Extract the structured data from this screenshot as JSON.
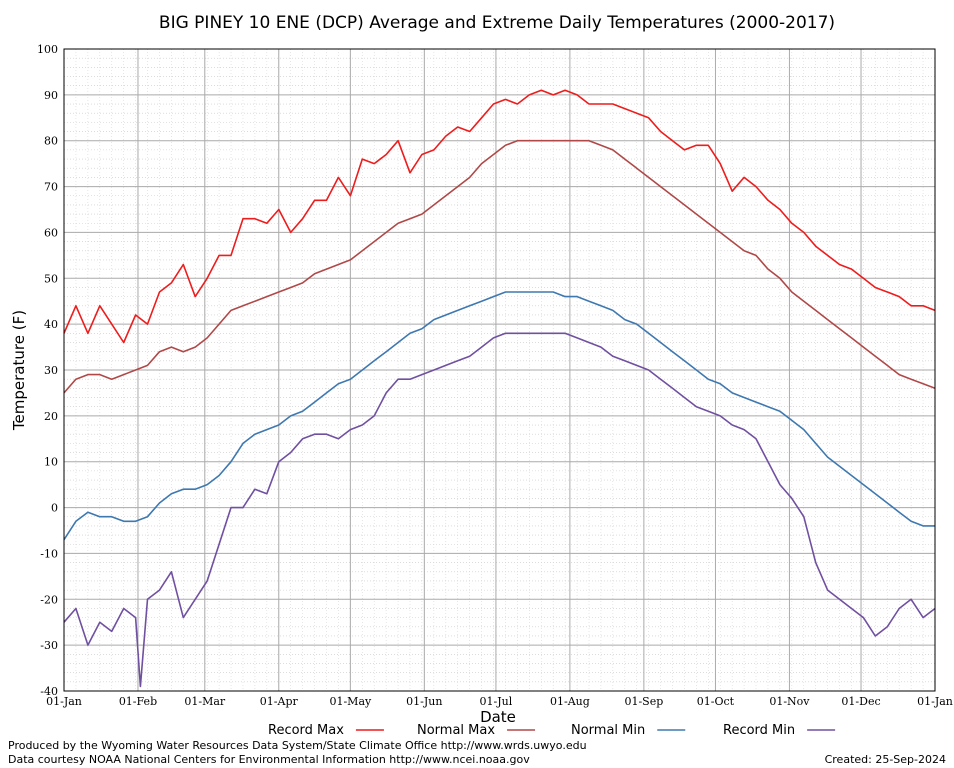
{
  "chart_data": {
    "type": "line",
    "title": "BIG PINEY 10 ENE (DCP) Average and Extreme Daily Temperatures (2000-2017)",
    "xlabel": "Date",
    "ylabel": "Temperature (F)",
    "ylim": [
      -40,
      100
    ],
    "grid": true,
    "legend_position": "bottom",
    "y_ticks": [
      "-40",
      "-30",
      "-20",
      "-10",
      "0",
      "10",
      "20",
      "30",
      "40",
      "50",
      "60",
      "70",
      "80",
      "90",
      "100"
    ],
    "x_ticks": [
      "01-Jan",
      "01-Feb",
      "01-Mar",
      "01-Apr",
      "01-May",
      "01-Jun",
      "01-Jul",
      "01-Aug",
      "01-Sep",
      "01-Oct",
      "01-Nov",
      "01-Dec",
      "01-Jan"
    ],
    "x_tick_days": [
      0,
      31,
      59,
      90,
      120,
      151,
      181,
      212,
      243,
      273,
      304,
      334,
      365
    ],
    "series": [
      {
        "name": "Record Max",
        "color": "#ee1c1c",
        "points": [
          [
            0,
            38
          ],
          [
            5,
            44
          ],
          [
            10,
            38
          ],
          [
            15,
            44
          ],
          [
            20,
            40
          ],
          [
            25,
            36
          ],
          [
            30,
            42
          ],
          [
            35,
            40
          ],
          [
            40,
            47
          ],
          [
            45,
            49
          ],
          [
            50,
            53
          ],
          [
            55,
            46
          ],
          [
            60,
            50
          ],
          [
            65,
            55
          ],
          [
            70,
            55
          ],
          [
            75,
            63
          ],
          [
            80,
            63
          ],
          [
            85,
            62
          ],
          [
            90,
            65
          ],
          [
            95,
            60
          ],
          [
            100,
            63
          ],
          [
            105,
            67
          ],
          [
            110,
            67
          ],
          [
            115,
            72
          ],
          [
            120,
            68
          ],
          [
            125,
            76
          ],
          [
            130,
            75
          ],
          [
            135,
            77
          ],
          [
            140,
            80
          ],
          [
            145,
            73
          ],
          [
            150,
            77
          ],
          [
            155,
            78
          ],
          [
            160,
            81
          ],
          [
            165,
            83
          ],
          [
            170,
            82
          ],
          [
            175,
            85
          ],
          [
            180,
            88
          ],
          [
            185,
            89
          ],
          [
            190,
            88
          ],
          [
            195,
            90
          ],
          [
            200,
            91
          ],
          [
            205,
            90
          ],
          [
            210,
            91
          ],
          [
            215,
            90
          ],
          [
            220,
            88
          ],
          [
            225,
            88
          ],
          [
            230,
            88
          ],
          [
            235,
            87
          ],
          [
            240,
            86
          ],
          [
            245,
            85
          ],
          [
            250,
            82
          ],
          [
            255,
            80
          ],
          [
            260,
            78
          ],
          [
            265,
            79
          ],
          [
            270,
            79
          ],
          [
            275,
            75
          ],
          [
            280,
            69
          ],
          [
            285,
            72
          ],
          [
            290,
            70
          ],
          [
            295,
            67
          ],
          [
            300,
            65
          ],
          [
            305,
            62
          ],
          [
            310,
            60
          ],
          [
            315,
            57
          ],
          [
            320,
            55
          ],
          [
            325,
            53
          ],
          [
            330,
            52
          ],
          [
            335,
            50
          ],
          [
            340,
            48
          ],
          [
            345,
            47
          ],
          [
            350,
            46
          ],
          [
            355,
            44
          ],
          [
            360,
            44
          ],
          [
            365,
            43
          ]
        ]
      },
      {
        "name": "Normal Max",
        "color": "#b04848",
        "points": [
          [
            0,
            25
          ],
          [
            5,
            28
          ],
          [
            10,
            29
          ],
          [
            15,
            29
          ],
          [
            20,
            28
          ],
          [
            25,
            29
          ],
          [
            30,
            30
          ],
          [
            35,
            31
          ],
          [
            40,
            34
          ],
          [
            45,
            35
          ],
          [
            50,
            34
          ],
          [
            55,
            35
          ],
          [
            60,
            37
          ],
          [
            65,
            40
          ],
          [
            70,
            43
          ],
          [
            75,
            44
          ],
          [
            80,
            45
          ],
          [
            85,
            46
          ],
          [
            90,
            47
          ],
          [
            95,
            48
          ],
          [
            100,
            49
          ],
          [
            105,
            51
          ],
          [
            110,
            52
          ],
          [
            115,
            53
          ],
          [
            120,
            54
          ],
          [
            125,
            56
          ],
          [
            130,
            58
          ],
          [
            135,
            60
          ],
          [
            140,
            62
          ],
          [
            145,
            63
          ],
          [
            150,
            64
          ],
          [
            155,
            66
          ],
          [
            160,
            68
          ],
          [
            165,
            70
          ],
          [
            170,
            72
          ],
          [
            175,
            75
          ],
          [
            180,
            77
          ],
          [
            185,
            79
          ],
          [
            190,
            80
          ],
          [
            195,
            80
          ],
          [
            200,
            80
          ],
          [
            205,
            80
          ],
          [
            210,
            80
          ],
          [
            215,
            80
          ],
          [
            220,
            80
          ],
          [
            225,
            79
          ],
          [
            230,
            78
          ],
          [
            235,
            76
          ],
          [
            240,
            74
          ],
          [
            245,
            72
          ],
          [
            250,
            70
          ],
          [
            255,
            68
          ],
          [
            260,
            66
          ],
          [
            265,
            64
          ],
          [
            270,
            62
          ],
          [
            275,
            60
          ],
          [
            280,
            58
          ],
          [
            285,
            56
          ],
          [
            290,
            55
          ],
          [
            295,
            52
          ],
          [
            300,
            50
          ],
          [
            305,
            47
          ],
          [
            310,
            45
          ],
          [
            315,
            43
          ],
          [
            320,
            41
          ],
          [
            325,
            39
          ],
          [
            330,
            37
          ],
          [
            335,
            35
          ],
          [
            340,
            33
          ],
          [
            345,
            31
          ],
          [
            350,
            29
          ],
          [
            355,
            28
          ],
          [
            360,
            27
          ],
          [
            365,
            26
          ]
        ]
      },
      {
        "name": "Normal Min",
        "color": "#3e78b0",
        "points": [
          [
            0,
            -7
          ],
          [
            5,
            -3
          ],
          [
            10,
            -1
          ],
          [
            15,
            -2
          ],
          [
            20,
            -2
          ],
          [
            25,
            -3
          ],
          [
            30,
            -3
          ],
          [
            35,
            -2
          ],
          [
            40,
            1
          ],
          [
            45,
            3
          ],
          [
            50,
            4
          ],
          [
            55,
            4
          ],
          [
            60,
            5
          ],
          [
            65,
            7
          ],
          [
            70,
            10
          ],
          [
            75,
            14
          ],
          [
            80,
            16
          ],
          [
            85,
            17
          ],
          [
            90,
            18
          ],
          [
            95,
            20
          ],
          [
            100,
            21
          ],
          [
            105,
            23
          ],
          [
            110,
            25
          ],
          [
            115,
            27
          ],
          [
            120,
            28
          ],
          [
            125,
            30
          ],
          [
            130,
            32
          ],
          [
            135,
            34
          ],
          [
            140,
            36
          ],
          [
            145,
            38
          ],
          [
            150,
            39
          ],
          [
            155,
            41
          ],
          [
            160,
            42
          ],
          [
            165,
            43
          ],
          [
            170,
            44
          ],
          [
            175,
            45
          ],
          [
            180,
            46
          ],
          [
            185,
            47
          ],
          [
            190,
            47
          ],
          [
            195,
            47
          ],
          [
            200,
            47
          ],
          [
            205,
            47
          ],
          [
            210,
            46
          ],
          [
            215,
            46
          ],
          [
            220,
            45
          ],
          [
            225,
            44
          ],
          [
            230,
            43
          ],
          [
            235,
            41
          ],
          [
            240,
            40
          ],
          [
            245,
            38
          ],
          [
            250,
            36
          ],
          [
            255,
            34
          ],
          [
            260,
            32
          ],
          [
            265,
            30
          ],
          [
            270,
            28
          ],
          [
            275,
            27
          ],
          [
            280,
            25
          ],
          [
            285,
            24
          ],
          [
            290,
            23
          ],
          [
            295,
            22
          ],
          [
            300,
            21
          ],
          [
            305,
            19
          ],
          [
            310,
            17
          ],
          [
            315,
            14
          ],
          [
            320,
            11
          ],
          [
            325,
            9
          ],
          [
            330,
            7
          ],
          [
            335,
            5
          ],
          [
            340,
            3
          ],
          [
            345,
            1
          ],
          [
            350,
            -1
          ],
          [
            355,
            -3
          ],
          [
            360,
            -4
          ],
          [
            365,
            -4
          ]
        ]
      },
      {
        "name": "Record Min",
        "color": "#7050a0",
        "points": [
          [
            0,
            -25
          ],
          [
            5,
            -22
          ],
          [
            10,
            -30
          ],
          [
            15,
            -25
          ],
          [
            20,
            -27
          ],
          [
            25,
            -22
          ],
          [
            30,
            -24
          ],
          [
            32,
            -39
          ],
          [
            35,
            -20
          ],
          [
            40,
            -18
          ],
          [
            45,
            -14
          ],
          [
            50,
            -24
          ],
          [
            55,
            -20
          ],
          [
            60,
            -16
          ],
          [
            65,
            -8
          ],
          [
            70,
            0
          ],
          [
            75,
            0
          ],
          [
            80,
            4
          ],
          [
            85,
            3
          ],
          [
            90,
            10
          ],
          [
            95,
            12
          ],
          [
            100,
            15
          ],
          [
            105,
            16
          ],
          [
            110,
            16
          ],
          [
            115,
            15
          ],
          [
            120,
            17
          ],
          [
            125,
            18
          ],
          [
            130,
            20
          ],
          [
            135,
            25
          ],
          [
            140,
            28
          ],
          [
            145,
            28
          ],
          [
            150,
            29
          ],
          [
            155,
            30
          ],
          [
            160,
            31
          ],
          [
            165,
            32
          ],
          [
            170,
            33
          ],
          [
            175,
            35
          ],
          [
            180,
            37
          ],
          [
            185,
            38
          ],
          [
            190,
            38
          ],
          [
            195,
            38
          ],
          [
            200,
            38
          ],
          [
            205,
            38
          ],
          [
            210,
            38
          ],
          [
            215,
            37
          ],
          [
            220,
            36
          ],
          [
            225,
            35
          ],
          [
            230,
            33
          ],
          [
            235,
            32
          ],
          [
            240,
            31
          ],
          [
            245,
            30
          ],
          [
            250,
            28
          ],
          [
            255,
            26
          ],
          [
            260,
            24
          ],
          [
            265,
            22
          ],
          [
            270,
            21
          ],
          [
            275,
            20
          ],
          [
            280,
            18
          ],
          [
            285,
            17
          ],
          [
            290,
            15
          ],
          [
            295,
            10
          ],
          [
            300,
            5
          ],
          [
            305,
            2
          ],
          [
            310,
            -2
          ],
          [
            315,
            -12
          ],
          [
            320,
            -18
          ],
          [
            325,
            -20
          ],
          [
            330,
            -22
          ],
          [
            335,
            -24
          ],
          [
            340,
            -28
          ],
          [
            345,
            -26
          ],
          [
            350,
            -22
          ],
          [
            355,
            -20
          ],
          [
            360,
            -24
          ],
          [
            365,
            -22
          ]
        ]
      }
    ]
  },
  "footer": {
    "producer": "Produced by the Wyoming Water Resources Data System/State Climate Office http://www.wrds.uwyo.edu",
    "courtesy": "Data courtesy NOAA National Centers for Environmental Information http://www.ncei.noaa.gov",
    "created": "Created:  25-Sep-2024"
  }
}
